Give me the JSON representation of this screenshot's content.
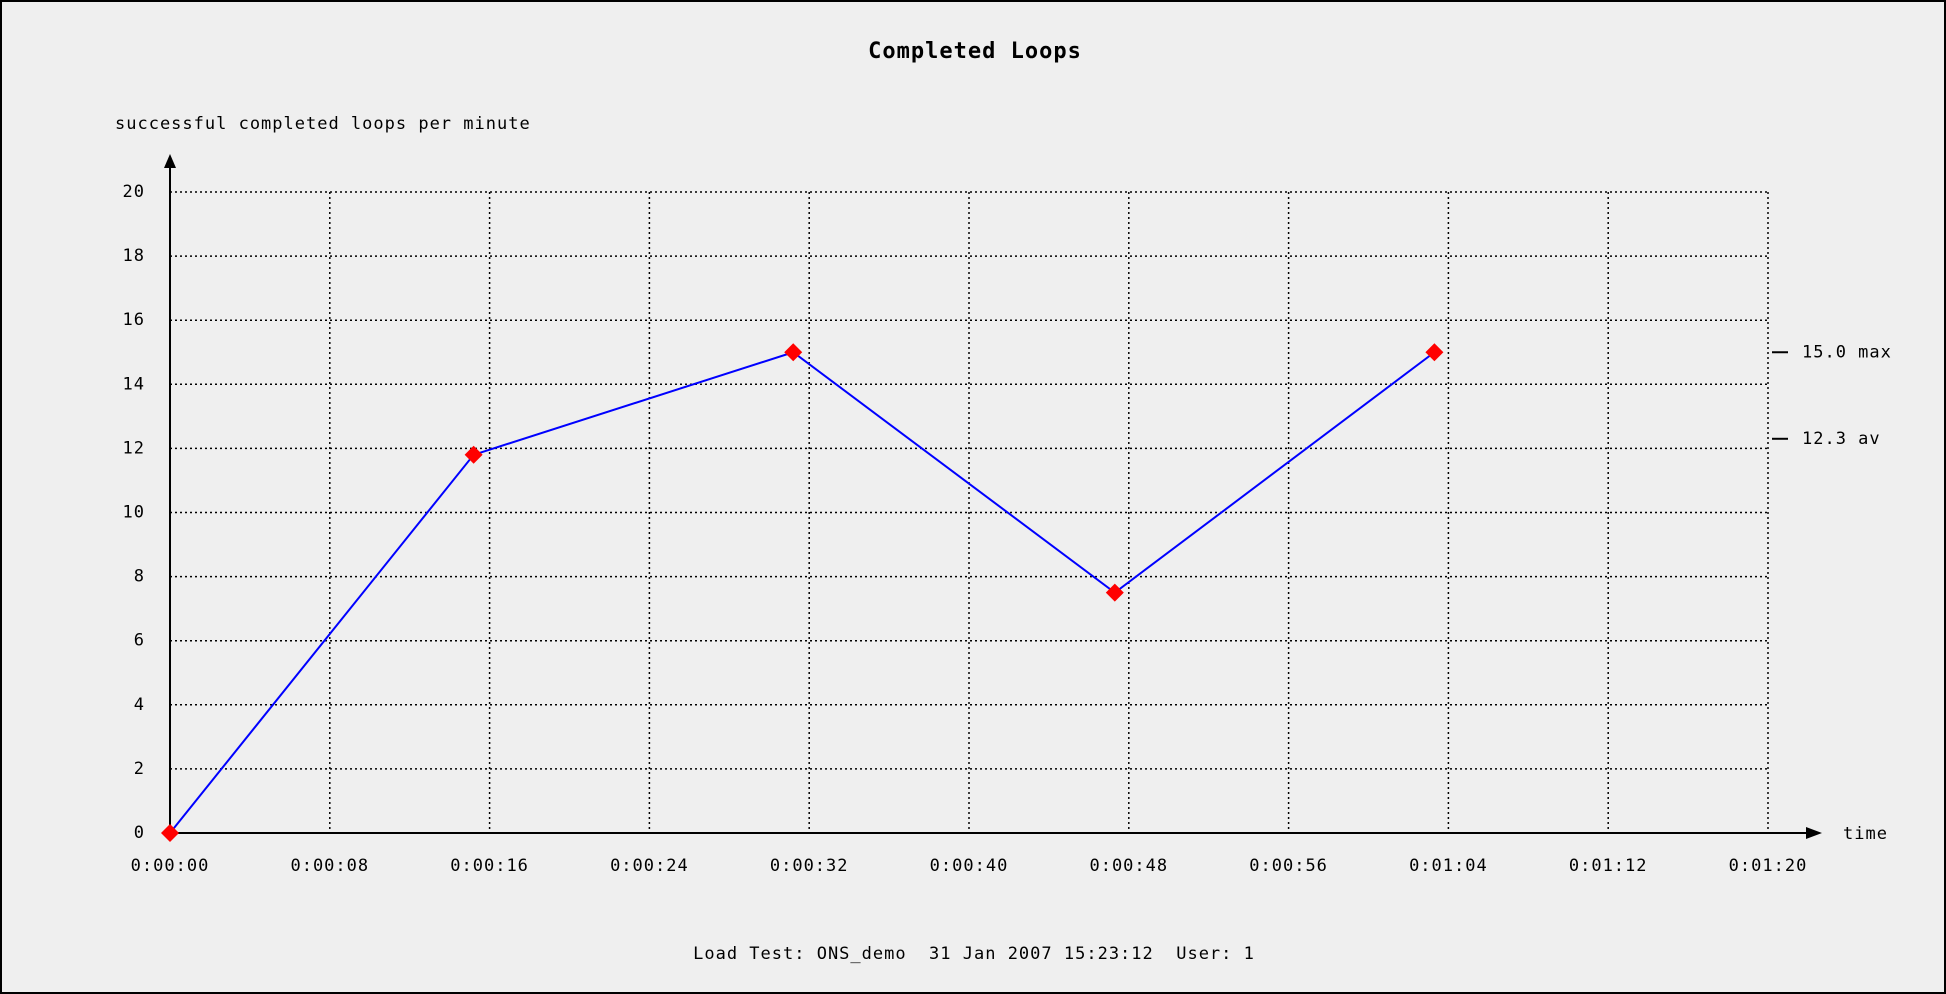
{
  "chart_data": {
    "type": "line",
    "title": "Completed Loops",
    "y_label": "successful completed loops per minute",
    "x_label": "time",
    "footer": "Load Test: ONS_demo  31 Jan 2007 15:23:12  User: 1",
    "x": [
      0,
      15.2,
      31.2,
      47.3,
      63.3
    ],
    "series": [
      {
        "color": "#0000ff",
        "marker_color": "#ff0000",
        "values": [
          0,
          11.8,
          15,
          7.5,
          15
        ]
      }
    ],
    "xlim": [
      0,
      80
    ],
    "xticks": [
      {
        "value": 0,
        "label": "0:00:00"
      },
      {
        "value": 8,
        "label": "0:00:08"
      },
      {
        "value": 16,
        "label": "0:00:16"
      },
      {
        "value": 24,
        "label": "0:00:24"
      },
      {
        "value": 32,
        "label": "0:00:32"
      },
      {
        "value": 40,
        "label": "0:00:40"
      },
      {
        "value": 48,
        "label": "0:00:48"
      },
      {
        "value": 56,
        "label": "0:00:56"
      },
      {
        "value": 64,
        "label": "0:01:04"
      },
      {
        "value": 72,
        "label": "0:01:12"
      },
      {
        "value": 80,
        "label": "0:01:20"
      }
    ],
    "ylim": [
      0,
      20
    ],
    "yticks": [
      0,
      2,
      4,
      6,
      8,
      10,
      12,
      14,
      16,
      18,
      20
    ],
    "grid": true,
    "annotations": [
      {
        "value": 15,
        "label": "15.0 max"
      },
      {
        "value": 12.3,
        "label": "12.3 av"
      }
    ]
  }
}
